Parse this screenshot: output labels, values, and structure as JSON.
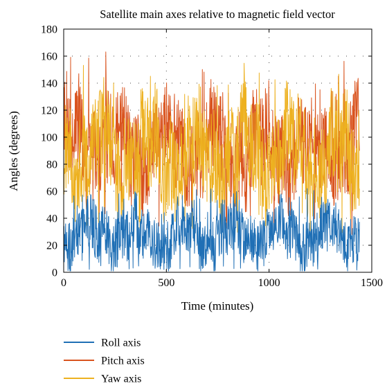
{
  "chart_data": {
    "type": "line",
    "title": "Satellite main axes relative to magnetic field vector",
    "xlabel": "Time (minutes)",
    "ylabel": "Angles (degrees)",
    "xlim": [
      0,
      1500
    ],
    "ylim": [
      0,
      180
    ],
    "xticks": [
      0,
      500,
      1000,
      1500
    ],
    "yticks": [
      0,
      20,
      40,
      60,
      80,
      100,
      120,
      140,
      160,
      180
    ],
    "grid": "dotted",
    "legend_position": "bottom-left",
    "x_range_of_data": [
      0,
      1440
    ],
    "series": [
      {
        "name": "Roll axis",
        "color": "#1f6fb5",
        "mean": 28,
        "typical_min": 5,
        "typical_max": 50,
        "peak_max": 62
      },
      {
        "name": "Pitch axis",
        "color": "#d9531e",
        "mean": 92,
        "typical_min": 55,
        "typical_max": 130,
        "peak_max": 165
      },
      {
        "name": "Yaw axis",
        "color": "#edb120",
        "mean": 88,
        "typical_min": 50,
        "typical_max": 130,
        "peak_max": 155
      }
    ]
  }
}
